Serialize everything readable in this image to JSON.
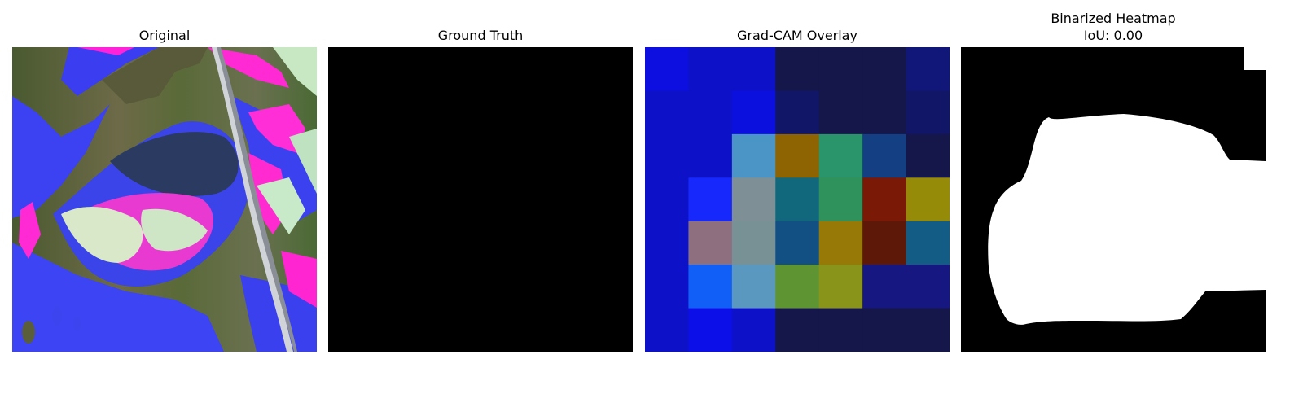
{
  "panels": [
    {
      "title": "Original"
    },
    {
      "title": "Ground Truth",
      "fill": "#000000"
    },
    {
      "title": "Grad-CAM Overlay",
      "grid": [
        [
          "#0c0fe0",
          "#0d12c8",
          "#0d12c8",
          "#15164a",
          "#15164a",
          "#15164a",
          "#111779"
        ],
        [
          "#0d12c8",
          "#0d12c8",
          "#0b10de",
          "#111666",
          "#15164a",
          "#15164a",
          "#121666"
        ],
        [
          "#0d12c8",
          "#0d12c8",
          "#4a94c6",
          "#8e6302",
          "#2a946a",
          "#143f83",
          "#15164a"
        ],
        [
          "#0d12c8",
          "#1628fc",
          "#7e9096",
          "#11677c",
          "#2f915c",
          "#7a1a06",
          "#968b08"
        ],
        [
          "#0d12c8",
          "#8e6f80",
          "#779195",
          "#124f82",
          "#977908",
          "#5d1808",
          "#125c86"
        ],
        [
          "#0d12c8",
          "#125ff8",
          "#5b98c0",
          "#5f9432",
          "#88951a",
          "#161780",
          "#161780"
        ],
        [
          "#0d12c8",
          "#0c0fe8",
          "#0d12c8",
          "#15164a",
          "#15164a",
          "#15164a",
          "#15164a"
        ]
      ]
    },
    {
      "title": "Binarized Heatmap",
      "subtitle": "IoU: 0.00"
    }
  ]
}
